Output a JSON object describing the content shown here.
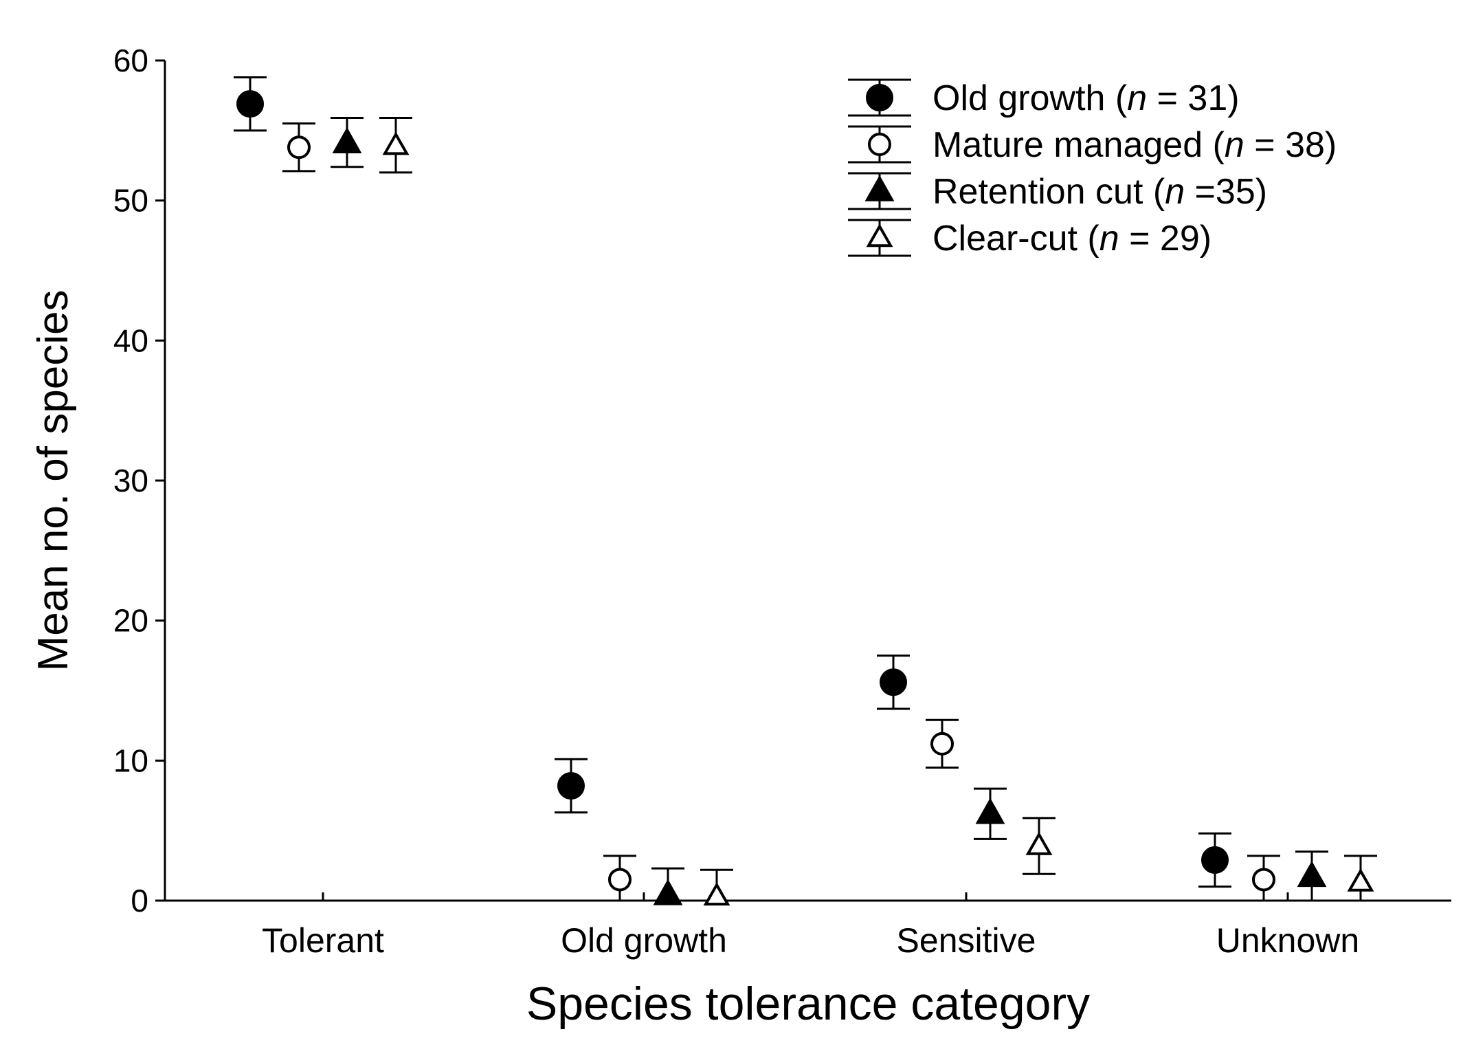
{
  "chart_data": {
    "type": "scatter",
    "title": "",
    "xlabel": "Species tolerance category",
    "ylabel": "Mean no. of species",
    "categories": [
      "Tolerant",
      "Old growth",
      "Sensitive",
      "Unknown"
    ],
    "ylim": [
      0,
      60
    ],
    "yticks": [
      "0",
      "10",
      "20",
      "30",
      "40",
      "50",
      "60"
    ],
    "grid": false,
    "legend_position": "top-right",
    "series": [
      {
        "name": "Old growth",
        "n_prefix": "n",
        "n_suffix": " = 31)",
        "marker": "circle-filled",
        "values": [
          56.9,
          8.2,
          15.6,
          2.9
        ],
        "err_low": [
          55.0,
          6.3,
          13.7,
          1.0
        ],
        "err_high": [
          58.8,
          10.1,
          17.5,
          4.8
        ]
      },
      {
        "name": "Mature managed",
        "n_prefix": "n",
        "n_suffix": " = 38)",
        "marker": "circle-open",
        "values": [
          53.8,
          1.5,
          11.2,
          1.5
        ],
        "err_low": [
          52.1,
          0.0,
          9.5,
          0.0
        ],
        "err_high": [
          55.5,
          3.2,
          12.9,
          3.2
        ]
      },
      {
        "name": "Retention cut",
        "n_prefix": "n",
        "n_suffix": " =35)",
        "marker": "triangle-filled",
        "values": [
          54.1,
          0.4,
          6.2,
          1.7
        ],
        "err_low": [
          52.4,
          0.0,
          4.4,
          0.0
        ],
        "err_high": [
          55.9,
          2.3,
          8.0,
          3.5
        ]
      },
      {
        "name": "Clear-cut",
        "n_prefix": "n",
        "n_suffix": " = 29)",
        "marker": "triangle-open",
        "values": [
          53.9,
          0.3,
          3.9,
          1.3
        ],
        "err_low": [
          52.0,
          0.0,
          1.9,
          0.0
        ],
        "err_high": [
          55.9,
          2.2,
          5.9,
          3.2
        ]
      }
    ]
  }
}
